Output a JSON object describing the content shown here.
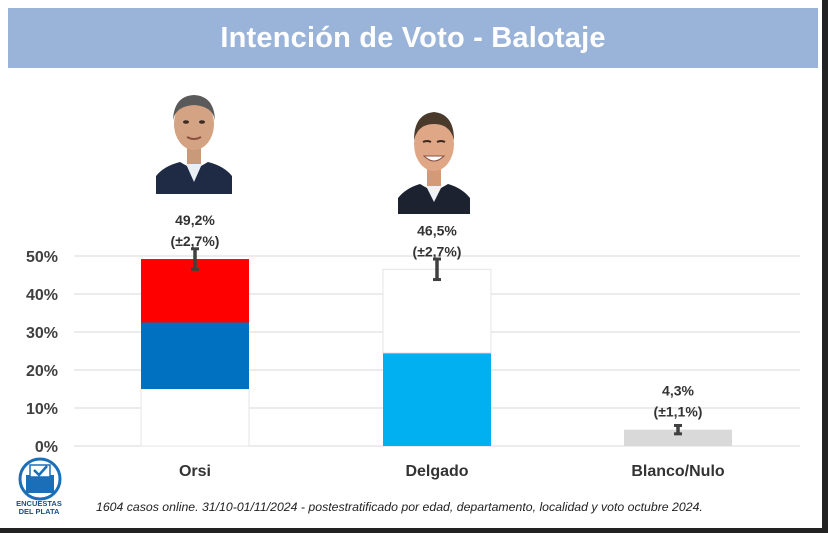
{
  "title": "Intención de Voto - Balotaje",
  "footnote": "1604 casos online.  31/10-01/11/2024 - postestratificado por edad, departamento, localidad y voto octubre 2024.",
  "logo": {
    "line1": "ENCUESTAS",
    "line2": "DEL PLATA"
  },
  "colors": {
    "title_bg": "#9ab3d9",
    "red": "#ff0000",
    "blue": "#0070c0",
    "light_blue": "#00b0f0",
    "grey": "#d9d9d9",
    "error_bar": "#404040"
  },
  "chart_data": {
    "type": "bar",
    "title": "Intención de Voto - Balotaje",
    "categories": [
      "Orsi",
      "Delgado",
      "Blanco/Nulo"
    ],
    "values": [
      49.2,
      46.5,
      4.3
    ],
    "margins": [
      2.7,
      2.7,
      1.1
    ],
    "value_labels": [
      "49,2%",
      "46,5%",
      "4,3%"
    ],
    "margin_labels": [
      "(±2,7%)",
      "(±2,7%)",
      "(±1,1%)"
    ],
    "segments": [
      [
        {
          "from": 0,
          "to": 15,
          "color": "#ffffff"
        },
        {
          "from": 15,
          "to": 32.5,
          "color": "#0070c0"
        },
        {
          "from": 32.5,
          "to": 49.2,
          "color": "#ff0000"
        }
      ],
      [
        {
          "from": 0,
          "to": 24.5,
          "color": "#00b0f0"
        },
        {
          "from": 24.5,
          "to": 46.5,
          "color": "#ffffff"
        }
      ],
      [
        {
          "from": 0,
          "to": 4.3,
          "color": "#d9d9d9"
        }
      ]
    ],
    "yticks": [
      0,
      10,
      20,
      30,
      40,
      50
    ],
    "ytick_labels": [
      "0%",
      "10%",
      "20%",
      "30%",
      "40%",
      "50%"
    ],
    "ylim": [
      0,
      50
    ],
    "grid": true,
    "legend": "none"
  }
}
